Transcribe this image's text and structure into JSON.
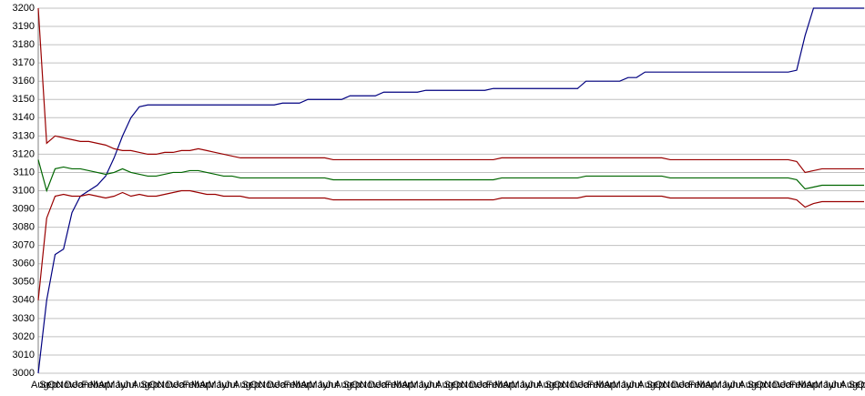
{
  "chart_data": {
    "type": "line",
    "categories": [
      "Aug",
      "Sep",
      "Oct",
      "Nov",
      "Dec",
      "Jan",
      "Feb",
      "Mar",
      "Apr",
      "May",
      "Jun",
      "Jul",
      "Aug",
      "Sep",
      "Oct",
      "Nov",
      "Dec",
      "Jan",
      "Feb",
      "Mar",
      "Apr",
      "May",
      "Jun",
      "Jul",
      "Aug",
      "Sep",
      "Oct",
      "Nov",
      "Dec",
      "Jan",
      "Feb",
      "Mar",
      "Apr",
      "May",
      "Jun",
      "Jul",
      "Aug",
      "Sep",
      "Oct",
      "Nov",
      "Dec",
      "Jan",
      "Feb",
      "Mar",
      "Apr",
      "May",
      "Jun",
      "Jul",
      "Aug",
      "Sep",
      "Oct",
      "Nov",
      "Dec",
      "Jan",
      "Feb",
      "Mar",
      "Apr",
      "May",
      "Jun",
      "Jul",
      "Aug",
      "Sep",
      "Oct",
      "Nov",
      "Dec",
      "Jan",
      "Feb",
      "Mar",
      "Apr",
      "May",
      "Jun",
      "Jul",
      "Aug",
      "Sep",
      "Oct",
      "Nov",
      "Dec",
      "Jan",
      "Feb",
      "Mar",
      "Apr",
      "May",
      "Jun",
      "Jul",
      "Aug",
      "Sep",
      "Oct",
      "Nov",
      "Dec",
      "Jan",
      "Feb",
      "Mar",
      "Apr",
      "May",
      "Jun",
      "Jul",
      "Aug",
      "Sep",
      "Oct"
    ],
    "series": [
      {
        "color": "#000080",
        "values": [
          3000,
          3040,
          3065,
          3068,
          3088,
          3097,
          3100,
          3103,
          3108,
          3118,
          3130,
          3140,
          3146,
          3147,
          3147,
          3147,
          3147,
          3147,
          3147,
          3147,
          3147,
          3147,
          3147,
          3147,
          3147,
          3147,
          3147,
          3147,
          3147,
          3148,
          3148,
          3148,
          3150,
          3150,
          3150,
          3150,
          3150,
          3152,
          3152,
          3152,
          3152,
          3154,
          3154,
          3154,
          3154,
          3154,
          3155,
          3155,
          3155,
          3155,
          3155,
          3155,
          3155,
          3155,
          3156,
          3156,
          3156,
          3156,
          3156,
          3156,
          3156,
          3156,
          3156,
          3156,
          3156,
          3160,
          3160,
          3160,
          3160,
          3160,
          3162,
          3162,
          3165,
          3165,
          3165,
          3165,
          3165,
          3165,
          3165,
          3165,
          3165,
          3165,
          3165,
          3165,
          3165,
          3165,
          3165,
          3165,
          3165,
          3165,
          3166,
          3185,
          3200,
          3200,
          3200,
          3200,
          3200,
          3200,
          3200
        ]
      },
      {
        "color": "#990000",
        "values": [
          3200,
          3126,
          3130,
          3129,
          3128,
          3127,
          3127,
          3126,
          3125,
          3123,
          3122,
          3122,
          3121,
          3120,
          3120,
          3121,
          3121,
          3122,
          3122,
          3123,
          3122,
          3121,
          3120,
          3119,
          3118,
          3118,
          3118,
          3118,
          3118,
          3118,
          3118,
          3118,
          3118,
          3118,
          3118,
          3117,
          3117,
          3117,
          3117,
          3117,
          3117,
          3117,
          3117,
          3117,
          3117,
          3117,
          3117,
          3117,
          3117,
          3117,
          3117,
          3117,
          3117,
          3117,
          3117,
          3118,
          3118,
          3118,
          3118,
          3118,
          3118,
          3118,
          3118,
          3118,
          3118,
          3118,
          3118,
          3118,
          3118,
          3118,
          3118,
          3118,
          3118,
          3118,
          3118,
          3117,
          3117,
          3117,
          3117,
          3117,
          3117,
          3117,
          3117,
          3117,
          3117,
          3117,
          3117,
          3117,
          3117,
          3117,
          3116,
          3110,
          3111,
          3112,
          3112,
          3112,
          3112,
          3112,
          3112
        ]
      },
      {
        "color": "#006600",
        "values": [
          3117,
          3100,
          3112,
          3113,
          3112,
          3112,
          3111,
          3110,
          3109,
          3110,
          3112,
          3110,
          3109,
          3108,
          3108,
          3109,
          3110,
          3110,
          3111,
          3111,
          3110,
          3109,
          3108,
          3108,
          3107,
          3107,
          3107,
          3107,
          3107,
          3107,
          3107,
          3107,
          3107,
          3107,
          3107,
          3106,
          3106,
          3106,
          3106,
          3106,
          3106,
          3106,
          3106,
          3106,
          3106,
          3106,
          3106,
          3106,
          3106,
          3106,
          3106,
          3106,
          3106,
          3106,
          3106,
          3107,
          3107,
          3107,
          3107,
          3107,
          3107,
          3107,
          3107,
          3107,
          3107,
          3108,
          3108,
          3108,
          3108,
          3108,
          3108,
          3108,
          3108,
          3108,
          3108,
          3107,
          3107,
          3107,
          3107,
          3107,
          3107,
          3107,
          3107,
          3107,
          3107,
          3107,
          3107,
          3107,
          3107,
          3107,
          3106,
          3101,
          3102,
          3103,
          3103,
          3103,
          3103,
          3103,
          3103
        ]
      },
      {
        "color": "#990000",
        "values": [
          3040,
          3085,
          3097,
          3098,
          3097,
          3097,
          3098,
          3097,
          3096,
          3097,
          3099,
          3097,
          3098,
          3097,
          3097,
          3098,
          3099,
          3100,
          3100,
          3099,
          3098,
          3098,
          3097,
          3097,
          3097,
          3096,
          3096,
          3096,
          3096,
          3096,
          3096,
          3096,
          3096,
          3096,
          3096,
          3095,
          3095,
          3095,
          3095,
          3095,
          3095,
          3095,
          3095,
          3095,
          3095,
          3095,
          3095,
          3095,
          3095,
          3095,
          3095,
          3095,
          3095,
          3095,
          3095,
          3096,
          3096,
          3096,
          3096,
          3096,
          3096,
          3096,
          3096,
          3096,
          3096,
          3097,
          3097,
          3097,
          3097,
          3097,
          3097,
          3097,
          3097,
          3097,
          3097,
          3096,
          3096,
          3096,
          3096,
          3096,
          3096,
          3096,
          3096,
          3096,
          3096,
          3096,
          3096,
          3096,
          3096,
          3096,
          3095,
          3091,
          3093,
          3094,
          3094,
          3094,
          3094,
          3094,
          3094
        ]
      }
    ],
    "ylim": [
      3000,
      3200
    ],
    "yticks": [
      3000,
      3010,
      3020,
      3030,
      3040,
      3050,
      3060,
      3070,
      3080,
      3090,
      3100,
      3110,
      3120,
      3130,
      3140,
      3150,
      3160,
      3170,
      3180,
      3190,
      3200
    ],
    "grid": true
  }
}
